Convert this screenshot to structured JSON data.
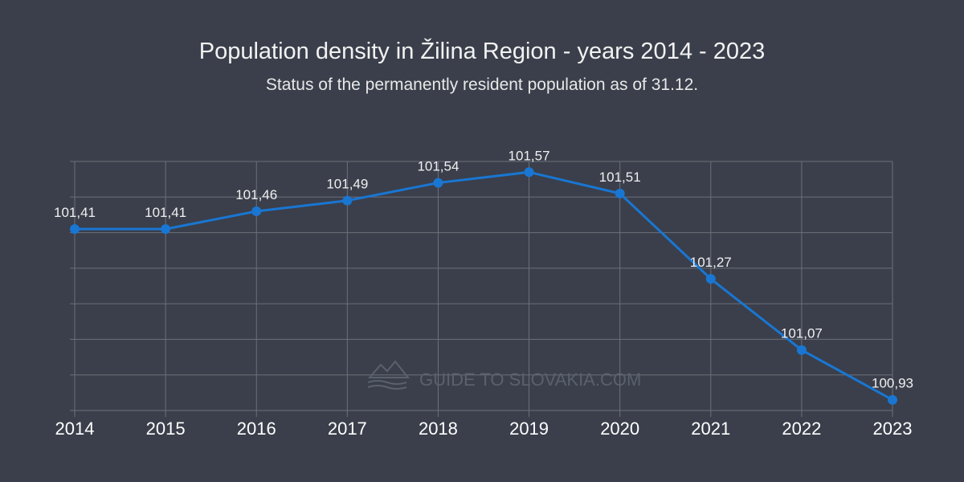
{
  "colors": {
    "background": "#3a3f4b",
    "line": "#1976d2",
    "grid": "#6b707a",
    "text": "#ffffff",
    "watermark": "#5a606c"
  },
  "watermark": {
    "text": "GUIDE TO SLOVAKIA.COM",
    "icon": "mountain-logo-icon"
  },
  "chart_data": {
    "type": "line",
    "title": "Population density in Žilina Region - years 2014 - 2023",
    "subtitle": "Status of the permanently resident population as of 31.12.",
    "xlabel": "",
    "ylabel": "",
    "categories": [
      "2014",
      "2015",
      "2016",
      "2017",
      "2018",
      "2019",
      "2020",
      "2021",
      "2022",
      "2023"
    ],
    "series": [
      {
        "name": "Population density",
        "values": [
          101.41,
          101.41,
          101.46,
          101.49,
          101.54,
          101.57,
          101.51,
          101.27,
          101.07,
          100.93
        ],
        "labels": [
          "101,41",
          "101,41",
          "101,46",
          "101,49",
          "101,54",
          "101,57",
          "101,51",
          "101,27",
          "101,07",
          "100,93"
        ]
      }
    ],
    "ylim": [
      100.9,
      101.6
    ],
    "yticks": [
      100.9,
      101.0,
      101.1,
      101.2,
      101.3,
      101.4,
      101.5,
      101.6
    ],
    "grid": true,
    "legend": "none"
  }
}
